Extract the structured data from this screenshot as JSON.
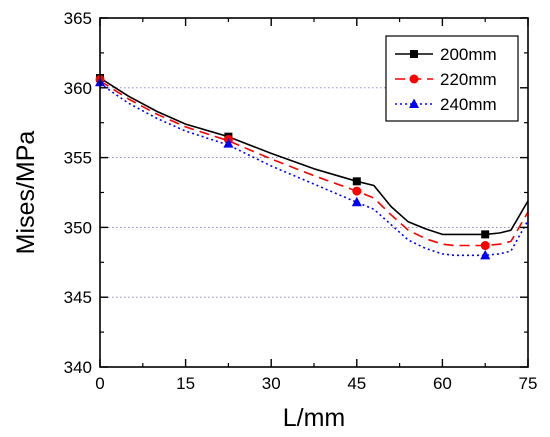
{
  "chart_data": {
    "type": "line",
    "title": "",
    "xlabel": "L/mm",
    "ylabel": "Mises/MPa",
    "xlim": [
      0,
      75
    ],
    "ylim": [
      340,
      365
    ],
    "xticks": [
      0,
      15,
      30,
      45,
      60,
      75
    ],
    "xtick_labels": [
      "0",
      "15",
      "30",
      "45",
      "60",
      "75"
    ],
    "yticks": [
      340,
      345,
      350,
      355,
      360,
      365
    ],
    "ytick_labels": [
      "340",
      "345",
      "350",
      "355",
      "360",
      "365"
    ],
    "grid": "horizontal dotted",
    "legend_position": "top-right",
    "series": [
      {
        "name": "200mm",
        "color": "#000000",
        "line_style": "solid",
        "marker": "square",
        "x": [
          0,
          5,
          10,
          15,
          22.5,
          30,
          37.5,
          45,
          48,
          51,
          54,
          57,
          60,
          62,
          65,
          67.5,
          70,
          72,
          75
        ],
        "y": [
          360.7,
          359.4,
          358.3,
          357.4,
          356.5,
          355.3,
          354.2,
          353.3,
          353.0,
          351.5,
          350.4,
          349.9,
          349.5,
          349.5,
          349.5,
          349.5,
          349.6,
          349.8,
          351.9
        ],
        "marker_x": [
          0,
          22.5,
          45,
          67.5
        ],
        "marker_y": [
          360.7,
          356.5,
          353.3,
          349.5
        ]
      },
      {
        "name": "220mm",
        "color": "#ff0000",
        "line_style": "dashed",
        "marker": "circle",
        "x": [
          0,
          5,
          10,
          15,
          22.5,
          30,
          37.5,
          45,
          48,
          51,
          54,
          57,
          60,
          62,
          65,
          67.5,
          70,
          72,
          75
        ],
        "y": [
          360.5,
          359.2,
          358.1,
          357.2,
          356.2,
          354.9,
          353.7,
          352.6,
          352.1,
          350.9,
          349.8,
          349.2,
          348.8,
          348.7,
          348.7,
          348.7,
          348.8,
          349.0,
          351.1
        ],
        "marker_x": [
          0,
          22.5,
          45,
          67.5
        ],
        "marker_y": [
          360.6,
          356.3,
          352.6,
          348.7
        ]
      },
      {
        "name": "240mm",
        "color": "#0000ff",
        "line_style": "dotted",
        "marker": "triangle",
        "x": [
          0,
          5,
          10,
          15,
          22.5,
          30,
          37.5,
          45,
          48,
          51,
          54,
          57,
          60,
          62,
          65,
          67.5,
          70,
          72,
          75
        ],
        "y": [
          360.3,
          358.9,
          357.8,
          356.9,
          355.9,
          354.4,
          353.1,
          351.8,
          351.3,
          350.2,
          349.1,
          348.5,
          348.1,
          348.0,
          348.0,
          348.0,
          348.1,
          348.3,
          350.5
        ],
        "marker_x": [
          0,
          22.5,
          45,
          67.5
        ],
        "marker_y": [
          360.4,
          356.0,
          351.8,
          348.0
        ]
      }
    ]
  }
}
